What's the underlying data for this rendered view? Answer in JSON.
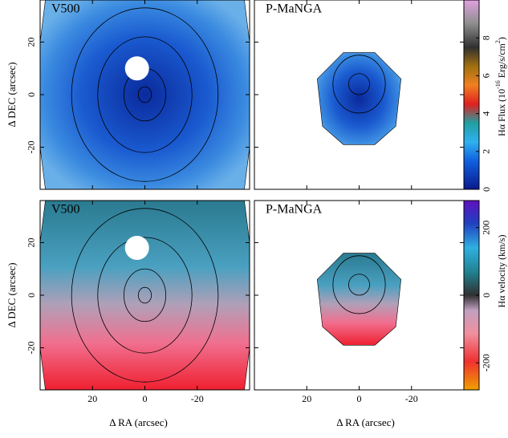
{
  "chart_data": [
    {
      "type": "image",
      "label": "V500",
      "xlim": [
        40,
        -40
      ],
      "ylim": [
        -36,
        36
      ],
      "xticks": [
        20,
        0,
        -20
      ],
      "yticks": [
        20,
        0,
        -20
      ],
      "ylabel": "Δ DEC (arcsec)"
    },
    {
      "type": "image",
      "label": "P-MaNGA",
      "xlim": [
        40,
        -40
      ],
      "ylim": [
        -36,
        36
      ],
      "xticks": [
        20,
        0,
        -20
      ],
      "yticks": [
        20,
        0,
        -20
      ]
    },
    {
      "type": "image",
      "label": "V500",
      "xlim": [
        40,
        -40
      ],
      "ylim": [
        -36,
        36
      ],
      "xticks": [
        20,
        0,
        -20
      ],
      "yticks": [
        20,
        0,
        -20
      ],
      "ylabel": "Δ DEC (arcsec)",
      "xlabel": "Δ RA (arcsec)"
    },
    {
      "type": "image",
      "label": "P-MaNGA",
      "xlim": [
        40,
        -40
      ],
      "ylim": [
        -36,
        36
      ],
      "xticks": [
        20,
        0,
        -20
      ],
      "yticks": [
        20,
        0,
        -20
      ],
      "xlabel": "Δ RA (arcsec)"
    },
    {
      "type": "colorbar",
      "label": [
        "Hα Flux (10",
        "-16",
        " Erg/s/cm",
        "2",
        ")"
      ],
      "ylim": [
        0,
        10
      ],
      "yticks": [
        0,
        2,
        4,
        6,
        8
      ]
    },
    {
      "type": "colorbar",
      "label": [
        "Hα velocity (km/s)"
      ],
      "ylim": [
        -280,
        280
      ],
      "yticks": [
        200,
        0,
        -200
      ]
    }
  ]
}
